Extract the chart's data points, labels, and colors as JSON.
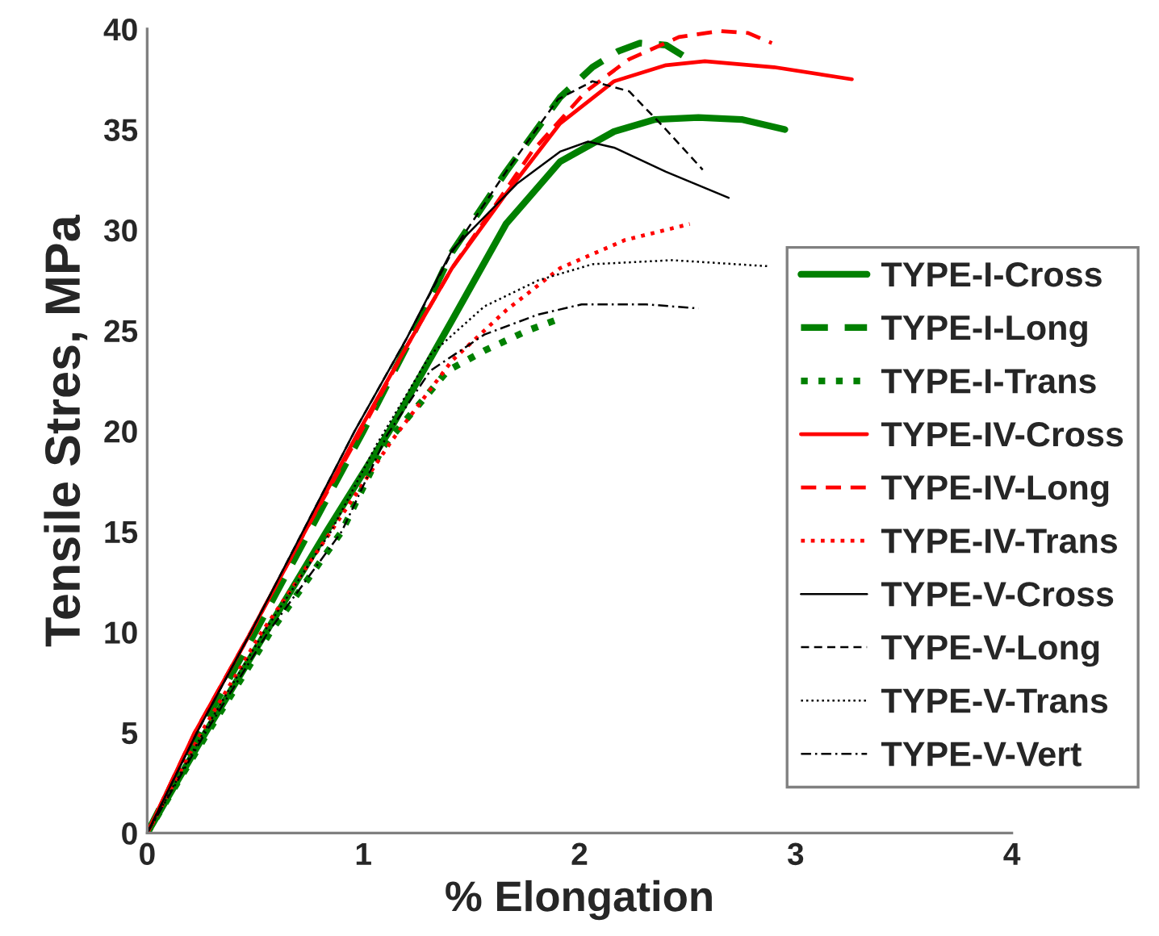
{
  "chart_data": {
    "type": "line",
    "xlabel": "% Elongation",
    "ylabel": "Tensile Stres, MPa",
    "xlim": [
      0,
      4
    ],
    "ylim": [
      0,
      40
    ],
    "xticks": [
      0,
      1,
      2,
      3,
      4
    ],
    "yticks": [
      0,
      5,
      10,
      15,
      20,
      25,
      30,
      35,
      40
    ],
    "grid": false,
    "legend": "right",
    "marker": "none",
    "series": [
      {
        "name": "TYPE-I-Cross",
        "color": "#008000",
        "line_style": "solid",
        "x": [
          0,
          0.27,
          0.55,
          0.83,
          1.12,
          1.41,
          1.66,
          1.91,
          2.16,
          2.35,
          2.55,
          2.75,
          2.95
        ],
        "values": [
          0,
          5,
          10,
          15,
          20,
          25.5,
          30.3,
          33.4,
          34.9,
          35.5,
          35.6,
          35.5,
          35.0
        ]
      },
      {
        "name": "TYPE-I-Long",
        "color": "#008000",
        "line_style": "dashed",
        "x": [
          0,
          0.24,
          0.5,
          0.75,
          1.0,
          1.22,
          1.41,
          1.66,
          1.91,
          2.06,
          2.18,
          2.28,
          2.4,
          2.49
        ],
        "values": [
          0,
          5,
          10,
          15,
          20,
          24.6,
          28.9,
          32.9,
          36.6,
          38.1,
          38.9,
          39.3,
          39.2,
          38.6
        ]
      },
      {
        "name": "TYPE-I-Trans",
        "color": "#008000",
        "line_style": "dotted",
        "x": [
          0,
          0.28,
          0.57,
          0.9,
          1.09,
          1.24,
          1.39,
          1.56,
          1.76,
          1.91
        ],
        "values": [
          0,
          5,
          10,
          15,
          19.2,
          21.1,
          23.0,
          24.0,
          25.0,
          25.6
        ]
      },
      {
        "name": "TYPE-IV-Cross",
        "color": "#ff0000",
        "line_style": "solid",
        "x": [
          0,
          0.22,
          0.48,
          0.73,
          0.98,
          1.2,
          1.41,
          1.66,
          1.91,
          2.16,
          2.4,
          2.58,
          2.9,
          3.26
        ],
        "values": [
          0,
          5,
          10,
          15,
          20,
          24.2,
          28.1,
          31.8,
          35.3,
          37.4,
          38.2,
          38.4,
          38.1,
          37.5
        ]
      },
      {
        "name": "TYPE-IV-Long",
        "color": "#ff0000",
        "line_style": "dashed",
        "x": [
          0,
          0.22,
          0.48,
          0.73,
          0.99,
          1.2,
          1.41,
          1.78,
          2.03,
          2.23,
          2.46,
          2.65,
          2.78,
          2.89
        ],
        "values": [
          0,
          5,
          10,
          15,
          20,
          24.2,
          28.1,
          33.9,
          36.9,
          38.5,
          39.6,
          39.9,
          39.8,
          39.3
        ]
      },
      {
        "name": "TYPE-IV-Trans",
        "color": "#ff0000",
        "line_style": "dotted",
        "x": [
          0,
          0.25,
          0.53,
          0.85,
          1.13,
          1.41,
          1.66,
          1.91,
          2.21,
          2.51
        ],
        "values": [
          0,
          5,
          10,
          15,
          19.5,
          23.5,
          26.0,
          28.1,
          29.5,
          30.3
        ]
      },
      {
        "name": "TYPE-V-Cross",
        "color": "#000000",
        "line_style": "solid",
        "x": [
          0,
          0.23,
          0.48,
          0.72,
          0.96,
          1.2,
          1.41,
          1.71,
          1.91,
          2.04,
          2.16,
          2.4,
          2.69
        ],
        "values": [
          0,
          5,
          10,
          15,
          20,
          24.6,
          29.0,
          32.3,
          33.9,
          34.4,
          34.1,
          32.9,
          31.6
        ]
      },
      {
        "name": "TYPE-V-Long",
        "color": "#000000",
        "line_style": "dashed",
        "x": [
          0,
          0.23,
          0.48,
          0.72,
          0.96,
          1.2,
          1.41,
          1.66,
          1.9,
          2.06,
          2.23,
          2.4,
          2.57
        ],
        "values": [
          0,
          5,
          10,
          15,
          20,
          24.6,
          28.9,
          32.9,
          36.5,
          37.4,
          36.9,
          35.0,
          33.0
        ]
      },
      {
        "name": "TYPE-V-Trans",
        "color": "#000000",
        "line_style": "dotted",
        "x": [
          0,
          0.26,
          0.54,
          0.85,
          1.06,
          1.31,
          1.56,
          1.81,
          2.06,
          2.43,
          2.87
        ],
        "values": [
          0,
          5,
          10,
          15,
          19.3,
          23.8,
          26.2,
          27.5,
          28.3,
          28.5,
          28.2
        ]
      },
      {
        "name": "TYPE-V-Vert",
        "color": "#000000",
        "line_style": "dashdot",
        "x": [
          0,
          0.27,
          0.56,
          0.9,
          1.11,
          1.31,
          1.56,
          1.81,
          2.01,
          2.31,
          2.55
        ],
        "values": [
          0,
          5,
          10,
          15,
          19.8,
          23.0,
          24.8,
          25.8,
          26.3,
          26.3,
          26.1
        ]
      }
    ]
  }
}
